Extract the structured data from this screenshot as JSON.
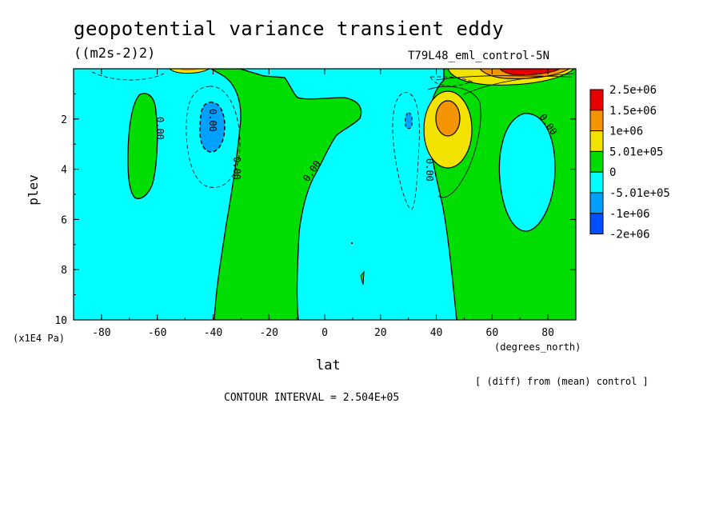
{
  "chart_data": {
    "type": "heatmap",
    "title": "geopotential variance transient eddy",
    "units": "((m2s-2)2)",
    "run_name": "T79L48_eml_control-5N",
    "xlabel": "lat",
    "x_unit": "(degrees_north)",
    "ylabel": "plev",
    "y_unit": "(x1E4 Pa)",
    "xlim": [
      -90,
      90
    ],
    "ylim": [
      10,
      0
    ],
    "x_ticks": [
      -80,
      -60,
      -40,
      -20,
      0,
      20,
      40,
      60,
      80
    ],
    "x_tick_labels": [
      "-80",
      "-60",
      "-40",
      "-20",
      "0",
      "20",
      "40",
      "60",
      "80"
    ],
    "y_ticks": [
      2,
      4,
      6,
      8,
      10
    ],
    "y_tick_labels": [
      "2",
      "4",
      "6",
      "8",
      "10"
    ],
    "note": "[ (diff) from (mean) control ]",
    "contour_interval": "CONTOUR INTERVAL = 2.504E+05",
    "contour_labels": [
      "0.00",
      "0.00",
      "0.00",
      "0.00",
      "0.00",
      "0.00"
    ],
    "legend": [
      {
        "label": "2.5e+06",
        "color": "#e80000"
      },
      {
        "label": "1.5e+06",
        "color": "#f39400"
      },
      {
        "label": "1e+06",
        "color": "#f2e200"
      },
      {
        "label": "5.01e+05",
        "color": "#00dd00"
      },
      {
        "label": "0",
        "color": "#00ffff"
      },
      {
        "label": "-5.01e+05",
        "color": "#00a0ff"
      },
      {
        "label": "-1e+06",
        "color": "#0050ff"
      },
      {
        "label": "-2e+06",
        "color": ""
      }
    ],
    "regions": [
      {
        "name": "sh-high-lat-positive-cell",
        "level": ">0",
        "lat": [
          -70,
          -56
        ],
        "plev": [
          1.0,
          5.2
        ]
      },
      {
        "name": "sh-midlat-negative-cell",
        "level": "<-5.01e+05",
        "lat": [
          -44,
          -36
        ],
        "plev": [
          1.3,
          3.4
        ]
      },
      {
        "name": "tropical-positive-column",
        "level": ">0",
        "lat": [
          -40,
          -10
        ],
        "plev": [
          0,
          10
        ]
      },
      {
        "name": "nh-subtropical-negative-cell",
        "level": "<-5.01e+05",
        "lat": [
          30,
          32
        ],
        "plev": [
          1.8,
          2.5
        ]
      },
      {
        "name": "nh-jet-positive-max",
        "level": ">1.5e+06",
        "lat": [
          38,
          48
        ],
        "plev": [
          1.2,
          3.0
        ]
      },
      {
        "name": "nh-polar-top-max",
        "level": ">2.5e+06",
        "lat": [
          66,
          78
        ],
        "plev": [
          0,
          0.3
        ]
      },
      {
        "name": "nh-high-lat-negative-pocket",
        "level": "<0",
        "lat": [
          59,
          86
        ],
        "plev": [
          1.9,
          6.5
        ]
      }
    ]
  }
}
